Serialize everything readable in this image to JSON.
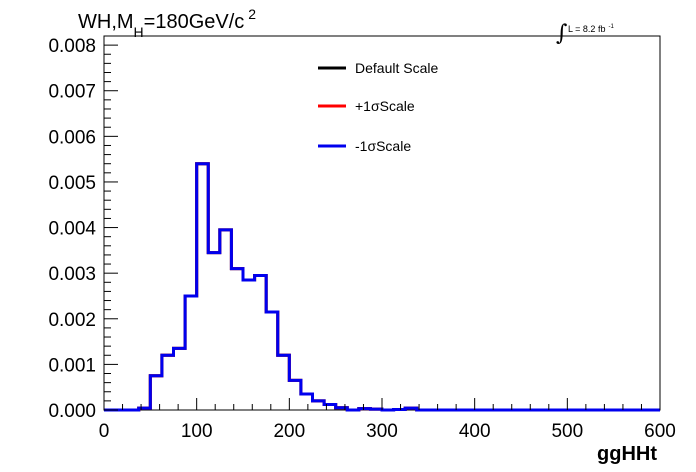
{
  "chart_data": {
    "type": "line",
    "style": "step-histogram",
    "title": {
      "prefix": "WH,M",
      "subscript": "H",
      "middle": "=180GeV/c",
      "superscript": "2"
    },
    "lumi_label": {
      "integral": "∫",
      "text": "L = 8.2 fb",
      "superscript": "-1"
    },
    "xlabel": "ggHHt",
    "ylabel": "",
    "xlim": [
      0,
      600
    ],
    "ylim": [
      0,
      0.0082
    ],
    "xticks": [
      "0",
      "100",
      "200",
      "300",
      "400",
      "500",
      "600"
    ],
    "yticks": [
      "0.000",
      "0.001",
      "0.002",
      "0.003",
      "0.004",
      "0.005",
      "0.006",
      "0.007",
      "0.008"
    ],
    "grid": false,
    "legend_position": "top-center",
    "bin_edges": [
      0,
      12.5,
      25,
      37.5,
      50,
      62.5,
      75,
      87.5,
      100,
      112.5,
      125,
      137.5,
      150,
      162.5,
      175,
      187.5,
      200,
      212.5,
      225,
      237.5,
      250,
      262.5,
      275,
      287.5,
      300,
      312.5,
      325,
      337.5,
      350,
      362.5,
      375,
      387.5,
      400,
      412.5,
      425,
      437.5,
      450,
      462.5,
      475,
      487.5,
      500,
      512.5,
      525,
      537.5,
      550,
      562.5,
      575,
      587.5,
      600
    ],
    "series": [
      {
        "name": "Default Scale",
        "color": "#000000",
        "values": [
          0,
          0,
          0,
          4e-05,
          0.00075,
          0.0012,
          0.00135,
          0.0025,
          0.0054,
          0.00345,
          0.00395,
          0.0031,
          0.00285,
          0.00295,
          0.00215,
          0.0012,
          0.00065,
          0.00035,
          0.0002,
          0.00012,
          5e-05,
          0,
          3e-05,
          2e-05,
          0,
          1e-05,
          4e-05,
          0,
          0,
          0,
          0,
          0,
          0,
          0,
          0,
          0,
          0,
          0,
          0,
          0,
          0,
          0,
          0,
          0,
          0,
          0,
          0,
          0
        ]
      },
      {
        "name": "+1σScale",
        "color": "#ff0000",
        "values": [
          0,
          0,
          0,
          4e-05,
          0.00075,
          0.0012,
          0.00135,
          0.0025,
          0.0054,
          0.00345,
          0.00395,
          0.0031,
          0.00285,
          0.00295,
          0.00215,
          0.0012,
          0.00065,
          0.00035,
          0.0002,
          0.00012,
          5e-05,
          0,
          3e-05,
          2e-05,
          0,
          1e-05,
          4e-05,
          0,
          0,
          0,
          0,
          0,
          0,
          0,
          0,
          0,
          0,
          0,
          0,
          0,
          0,
          0,
          0,
          0,
          0,
          0,
          0,
          0
        ]
      },
      {
        "name": "-1σScale",
        "color": "#0000ee",
        "values": [
          0,
          0,
          0,
          4e-05,
          0.00075,
          0.0012,
          0.00135,
          0.0025,
          0.0054,
          0.00345,
          0.00395,
          0.0031,
          0.00285,
          0.00295,
          0.00215,
          0.0012,
          0.00065,
          0.00035,
          0.0002,
          0.00012,
          5e-05,
          0,
          3e-05,
          2e-05,
          0,
          1e-05,
          4e-05,
          0,
          0,
          0,
          0,
          0,
          0,
          0,
          0,
          0,
          0,
          0,
          0,
          0,
          0,
          0,
          0,
          0,
          0,
          0,
          0,
          0
        ]
      }
    ]
  }
}
